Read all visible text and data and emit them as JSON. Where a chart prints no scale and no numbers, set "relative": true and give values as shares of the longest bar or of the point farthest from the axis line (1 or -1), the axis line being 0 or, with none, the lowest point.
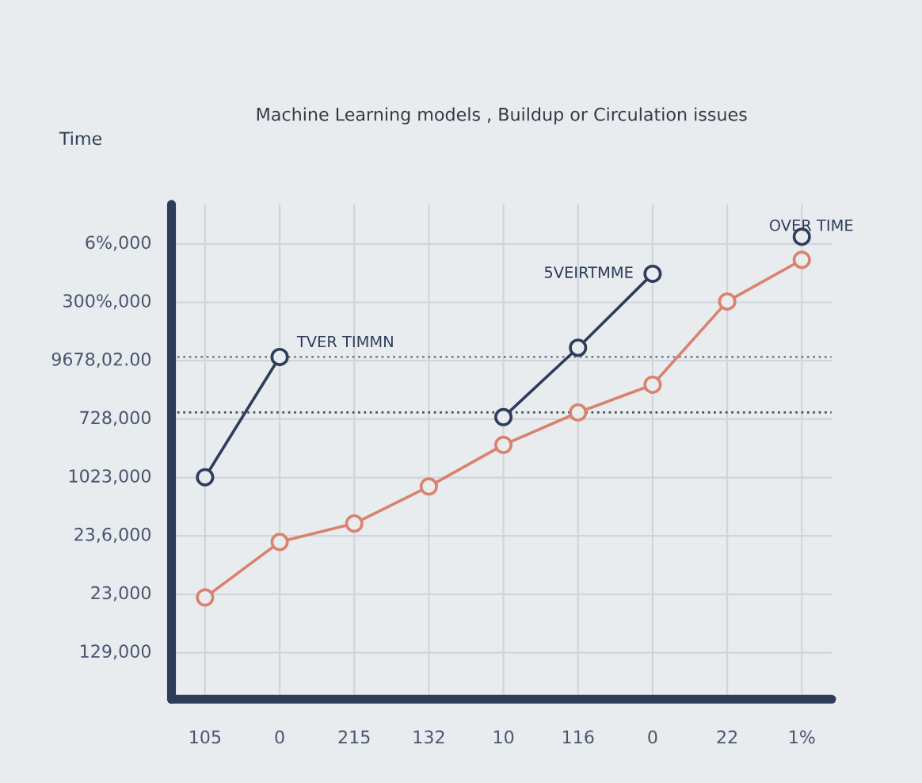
{
  "chart_data": {
    "type": "line",
    "title": "Machine Learning models , Buildup or Circulation issues",
    "relative": true,
    "categories": [
      "105",
      "0",
      "215",
      "132",
      "10",
      "116",
      "0",
      "22",
      "1%"
    ],
    "series": [
      {
        "color": "#2e3d5c",
        "values": [
          0.48,
          0.74,
          null,
          null,
          0.61,
          0.76,
          0.92,
          null,
          1.0
        ]
      },
      {
        "color": "#d9826e",
        "values": [
          0.22,
          0.34,
          0.38,
          0.46,
          0.55,
          0.62,
          0.68,
          0.86,
          0.95
        ]
      }
    ],
    "marker": "circle",
    "line_style": "solid",
    "grid": true,
    "ref_lines": [
      {
        "axis": "y",
        "value": 0.74,
        "line_style": "dotted",
        "color": "#7a8290"
      },
      {
        "axis": "y",
        "value": 0.62,
        "line_style": "dotted",
        "color": "#4a5266"
      }
    ],
    "annotations": [
      "6%,000",
      "300%,000",
      "9678,02.00",
      "728,000",
      "1023,000",
      "23,6,000",
      "23,000",
      "129,000",
      "TVER TIMMN",
      "5VEIRTMME",
      "OVER TIME",
      "Time"
    ]
  }
}
